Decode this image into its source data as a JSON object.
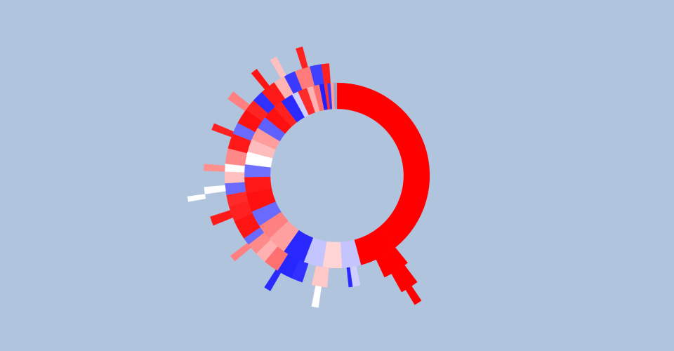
{
  "chart_data": {
    "type": "sunburst",
    "levels": [
      {
        "values": [
          141,
          24,
          12,
          12,
          12,
          14,
          12,
          10,
          10,
          12,
          10,
          8,
          8,
          8,
          8,
          8,
          8,
          6,
          8,
          4,
          6,
          4,
          4,
          3,
          2,
          2,
          2,
          2
        ],
        "colors": [
          "#ff0000",
          "#ff0000",
          "#c4c4ff",
          "#ffd4d4",
          "#c4c4ff",
          "#2828ff",
          "#ffa0a0",
          "#ff8080",
          "#6a6aff",
          "#ff1010",
          "#ff1818",
          "#7070ff",
          "#ffffff",
          "#ffbcbc",
          "#ff9c9c",
          "#6060ff",
          "#ff1010",
          "#ff2020",
          "#2a2aff",
          "#d0d0ff",
          "#ff2a2a",
          "#ffb0b0",
          "#ff7070",
          "#2020ff",
          "#ff3030",
          "#3a3aff",
          "#ffa0a0",
          "#a0a0c0"
        ]
      },
      {
        "values": [
          141,
          14,
          13,
          4,
          2,
          11,
          8,
          5,
          6,
          8,
          8,
          6,
          6,
          4,
          10,
          8,
          6,
          6,
          6,
          4,
          8,
          8,
          6,
          8,
          6,
          6,
          8,
          6,
          6,
          8,
          6,
          4,
          4
        ],
        "colors": [
          null,
          "#ff0000",
          null,
          "#d0d0ff",
          "#2a2aff",
          null,
          "#ffc8c8",
          null,
          "#3030ff",
          "#2626ff",
          "#ff7070",
          "#ffb0b0",
          "#ff8a8a",
          "#6a6aff",
          "#ff1414",
          "#ff2020",
          "#ff2a2a",
          "#6a6aff",
          "#ffc0c0",
          "#ffffff",
          "#ff8888",
          "#ff1818",
          "#6a6aff",
          "#ff1010",
          "#ff2424",
          "#3030ff",
          "#ff1a1a",
          "#ffb4b4",
          "#3a3aff",
          "#ff7a7a",
          "#4040ff",
          "#ff2020",
          null
        ]
      },
      {
        "values": [
          143,
          8,
          37,
          3,
          19,
          3,
          17,
          3,
          15,
          4,
          10,
          3,
          7,
          3,
          15,
          3,
          12,
          4,
          11,
          3,
          7,
          3,
          9,
          3,
          15
        ],
        "colors": [
          null,
          "#ff0000",
          null,
          "#ffffff",
          null,
          "#2a2aff",
          null,
          "#ff8080",
          null,
          "#ff1a1a",
          null,
          "#ffffff",
          null,
          "#ff9090",
          null,
          "#ff2020",
          null,
          "#ff8080",
          null,
          "#ff1414",
          null,
          "#ffc0c0",
          null,
          "#ff2020",
          null
        ]
      },
      {
        "values": [
          146,
          3,
          111,
          2,
          98
        ],
        "colors": [
          null,
          "#ff0000",
          null,
          "#ffffff",
          null
        ]
      }
    ]
  }
}
